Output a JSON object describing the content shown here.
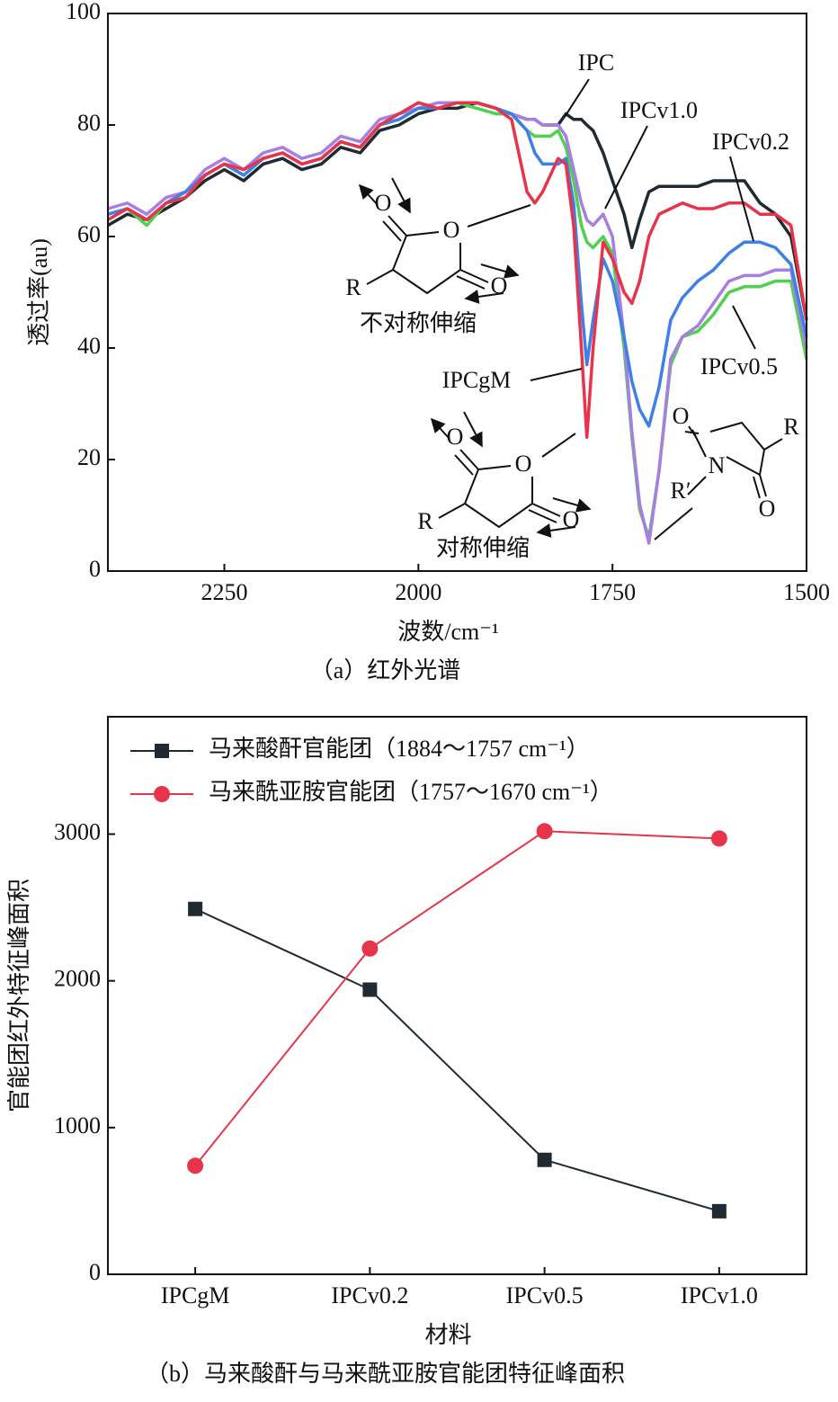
{
  "chart_data": [
    {
      "type": "line",
      "caption": "（a）红外光谱",
      "x_label": "波数/cm⁻¹",
      "y_label": "透过率(au)",
      "xlim": [
        2400,
        1500
      ],
      "xticks": [
        2250,
        2000,
        1750,
        1500
      ],
      "ylim": [
        0,
        100
      ],
      "yticks": [
        0,
        20,
        40,
        60,
        80,
        100
      ],
      "x": [
        2400,
        2375,
        2350,
        2325,
        2300,
        2275,
        2250,
        2225,
        2200,
        2175,
        2150,
        2125,
        2100,
        2075,
        2050,
        2025,
        2000,
        1975,
        1950,
        1925,
        1900,
        1880,
        1860,
        1850,
        1840,
        1830,
        1820,
        1810,
        1800,
        1790,
        1783,
        1775,
        1762,
        1750,
        1735,
        1725,
        1715,
        1703,
        1690,
        1675,
        1660,
        1640,
        1620,
        1600,
        1580,
        1560,
        1540,
        1520,
        1500
      ],
      "series": [
        {
          "name": "IPC",
          "color": "#1f2a33",
          "values": [
            62,
            64,
            63,
            65,
            67,
            70,
            72,
            70,
            73,
            74,
            72,
            73,
            76,
            75,
            79,
            80,
            82,
            83,
            83,
            84,
            83,
            82,
            81,
            81,
            80,
            80,
            80,
            82,
            81,
            81,
            80,
            79,
            75,
            70,
            64,
            58,
            63,
            68,
            69,
            69,
            69,
            69,
            70,
            70,
            70,
            66,
            64,
            60,
            45
          ]
        },
        {
          "name": "IPCv0.5",
          "color": "#4fd14f",
          "values": [
            64,
            65,
            62,
            66,
            67,
            71,
            73,
            71,
            74,
            75,
            73,
            74,
            77,
            76,
            80,
            81,
            83,
            83,
            84,
            83,
            82,
            82,
            79,
            78,
            78,
            78,
            79,
            76,
            70,
            62,
            59,
            58,
            60,
            57,
            40,
            24,
            11,
            6,
            18,
            37,
            42,
            43,
            46,
            50,
            51,
            51,
            52,
            52,
            38
          ]
        },
        {
          "name": "IPCv1.0",
          "color": "#a87fe0",
          "values": [
            65,
            66,
            64,
            67,
            68,
            72,
            74,
            72,
            75,
            76,
            74,
            75,
            78,
            77,
            81,
            82,
            83,
            84,
            84,
            84,
            83,
            82,
            81,
            81,
            80,
            80,
            80,
            78,
            72,
            66,
            63,
            62,
            64,
            60,
            42,
            25,
            12,
            5,
            18,
            38,
            42,
            44,
            48,
            52,
            53,
            53,
            54,
            54,
            40
          ]
        },
        {
          "name": "IPCv0.2",
          "color": "#3f7fe8",
          "values": [
            64,
            65,
            63,
            66,
            68,
            71,
            73,
            71,
            74,
            75,
            73,
            74,
            77,
            76,
            80,
            81,
            83,
            83,
            84,
            84,
            83,
            82,
            79,
            75,
            73,
            73,
            73,
            74,
            66,
            48,
            37,
            45,
            56,
            52,
            42,
            34,
            29,
            26,
            33,
            45,
            49,
            52,
            54,
            57,
            59,
            59,
            58,
            55,
            42
          ]
        },
        {
          "name": "IPCgM",
          "color": "#e8344a",
          "values": [
            63,
            65,
            63,
            66,
            67,
            71,
            73,
            72,
            74,
            75,
            73,
            74,
            77,
            76,
            80,
            82,
            84,
            83,
            84,
            84,
            83,
            81,
            68,
            66,
            68,
            71,
            74,
            73,
            62,
            40,
            24,
            40,
            59,
            56,
            50,
            48,
            52,
            60,
            64,
            65,
            66,
            65,
            65,
            66,
            66,
            64,
            64,
            62,
            45
          ]
        }
      ],
      "annotations": [
        "不对称伸缩",
        "对称伸缩"
      ]
    },
    {
      "type": "line",
      "caption": "（b）马来酸酐与马来酰亚胺官能团特征峰面积",
      "x_label": "材料",
      "y_label": "官能团红外特征峰面积",
      "categories": [
        "IPCgM",
        "IPCv0.2",
        "IPCv0.5",
        "IPCv1.0"
      ],
      "ylim": [
        0,
        3800
      ],
      "yticks": [
        0,
        1000,
        2000,
        3000
      ],
      "legend": "upper left",
      "series": [
        {
          "name": "马来酸酐官能团（1884～1757 cm⁻¹）",
          "color": "#1f2a33",
          "marker": "square",
          "values": [
            2490,
            1940,
            780,
            430
          ]
        },
        {
          "name": "马来酰亚胺官能团（1757～1670 cm⁻¹）",
          "color": "#e8344a",
          "marker": "circle",
          "values": [
            740,
            2220,
            3020,
            2970
          ]
        }
      ]
    }
  ],
  "structure_labels": {
    "o": "O",
    "r": "R",
    "n": "N",
    "r_prime": "R′"
  }
}
